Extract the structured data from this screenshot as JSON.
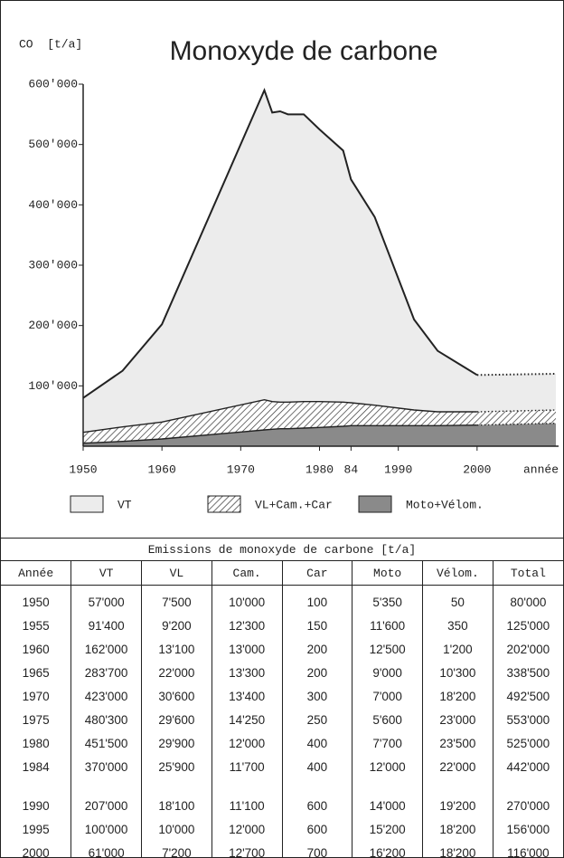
{
  "chart_data": {
    "type": "stacked_area",
    "title": "Monoxyde de carbone",
    "y_label": "CO  [t/a]",
    "x_label": "année",
    "x": [
      1950,
      1955,
      1960,
      1973,
      1974,
      1975,
      1976,
      1978,
      1980,
      1983,
      1984,
      1987,
      1992,
      1995,
      2000,
      2010
    ],
    "series": [
      {
        "name": "Moto+Vélom.",
        "color": "#8a8a8a",
        "values": [
          5000,
          8000,
          12000,
          27000,
          28000,
          29000,
          29000,
          30000,
          31000,
          33000,
          34000,
          34000,
          34000,
          34000,
          35000,
          38000
        ]
      },
      {
        "name": "VL+Cam.+Car",
        "color": "#ffffff",
        "hatch": true,
        "values": [
          18000,
          24000,
          28000,
          50000,
          46000,
          44000,
          44000,
          44000,
          43000,
          40000,
          38000,
          34000,
          26000,
          23000,
          22000,
          22000
        ]
      },
      {
        "name": "VT",
        "color": "#ececec",
        "values": [
          57000,
          93000,
          162000,
          513000,
          479000,
          482000,
          477000,
          476000,
          451000,
          417000,
          370000,
          312000,
          150000,
          101000,
          61000,
          60000
        ]
      }
    ],
    "dotted_from": 2000,
    "xlim": [
      1950,
      2010
    ],
    "xticks": [
      1950,
      1960,
      1970,
      1980,
      {
        "value": 1984,
        "label": "84"
      },
      1990,
      2000
    ],
    "ylim": [
      0,
      600000
    ],
    "yticks": [
      {
        "value": 100000,
        "label": "100'000"
      },
      {
        "value": 200000,
        "label": "200'000"
      },
      {
        "value": 300000,
        "label": "300'000"
      },
      {
        "value": 400000,
        "label": "400'000"
      },
      {
        "value": 500000,
        "label": "500'000"
      },
      {
        "value": 600000,
        "label": "600'000"
      }
    ]
  },
  "table": {
    "title": "Emissions de monoxyde de carbone  [t/a]",
    "header": [
      "Année",
      "VT",
      "VL",
      "Cam.",
      "Car",
      "Moto",
      "Vélom.",
      "Total"
    ],
    "rows": [
      [
        "1950",
        "57'000",
        "7'500",
        "10'000",
        "100",
        "5'350",
        "50",
        "80'000"
      ],
      [
        "1955",
        "91'400",
        "9'200",
        "12'300",
        "150",
        "11'600",
        "350",
        "125'000"
      ],
      [
        "1960",
        "162'000",
        "13'100",
        "13'000",
        "200",
        "12'500",
        "1'200",
        "202'000"
      ],
      [
        "1965",
        "283'700",
        "22'000",
        "13'300",
        "200",
        "9'000",
        "10'300",
        "338'500"
      ],
      [
        "1970",
        "423'000",
        "30'600",
        "13'400",
        "300",
        "7'000",
        "18'200",
        "492'500"
      ],
      [
        "1975",
        "480'300",
        "29'600",
        "14'250",
        "250",
        "5'600",
        "23'000",
        "553'000"
      ],
      [
        "1980",
        "451'500",
        "29'900",
        "12'000",
        "400",
        "7'700",
        "23'500",
        "525'000"
      ],
      [
        "1984",
        "370'000",
        "25'900",
        "11'700",
        "400",
        "12'000",
        "22'000",
        "442'000"
      ],
      [
        "1990",
        "207'000",
        "18'100",
        "11'100",
        "600",
        "14'000",
        "19'200",
        "270'000"
      ],
      [
        "1995",
        "100'000",
        "10'000",
        "12'000",
        "600",
        "15'200",
        "18'200",
        "156'000"
      ],
      [
        "2000",
        "61'000",
        "7'200",
        "12'700",
        "700",
        "16'200",
        "18'200",
        "116'000"
      ]
    ]
  }
}
